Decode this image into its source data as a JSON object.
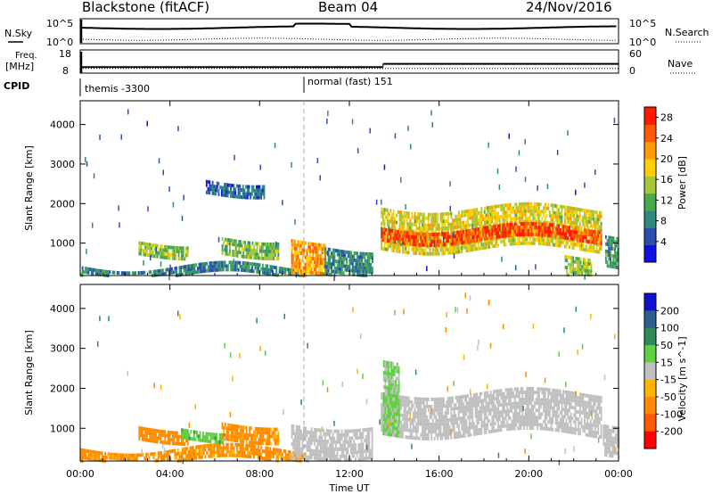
{
  "chart_data": {
    "type": "heatmap",
    "header": {
      "radar": "Blackstone (fitACF)",
      "beam": "Beam 04",
      "date": "24/Nov/2016"
    },
    "noise_panel": {
      "left_label": "N.Sky",
      "left_ticks": [
        "10^5",
        "10^0"
      ],
      "right_label": "N.Search",
      "right_ticks": [
        "10^5",
        "10^0"
      ]
    },
    "freq_panel": {
      "left_label_1": "Freq.",
      "left_label_2": "[MHz]",
      "left_ticks": [
        18,
        8
      ],
      "right_label": "Nave",
      "right_ticks": [
        60,
        0
      ],
      "freq_step_hours": [
        {
          "start": 0.0,
          "end": 13.5,
          "freq": 10.6
        },
        {
          "start": 13.5,
          "end": 24.0,
          "freq": 12.0
        }
      ]
    },
    "cpid": {
      "label": "CPID",
      "segments": [
        {
          "start": 0.0,
          "name": "themis -3300"
        },
        {
          "start": 10.0,
          "name": "normal (fast) 151"
        }
      ]
    },
    "x_axis": {
      "label": "Time UT",
      "tick_labels": [
        "00:00",
        "04:00",
        "08:00",
        "12:00",
        "16:00",
        "20:00",
        "00:00"
      ],
      "range_hours": [
        0,
        24
      ]
    },
    "y_axis": {
      "label": "Slant Range [km]",
      "ticks": [
        1000,
        2000,
        3000,
        4000
      ],
      "range_km": [
        180,
        4600
      ]
    },
    "power_panel": {
      "colorbar_label": "Power [dB]",
      "colorbar_ticks": [
        4,
        8,
        12,
        16,
        20,
        24,
        28
      ],
      "colorbar_range": [
        0,
        30
      ],
      "colorbar_colors": [
        "#1010e0",
        "#2a4fb0",
        "#2f8a7e",
        "#4ca84c",
        "#a6c63a",
        "#ffd000",
        "#ff9a00",
        "#ff5a00",
        "#ff1a00"
      ],
      "features": [
        {
          "t0": 0.0,
          "t1": 10.0,
          "r0": 200,
          "r1": 420,
          "db": 8
        },
        {
          "t0": 2.6,
          "t1": 4.8,
          "r0": 700,
          "r1": 1050,
          "db": 14
        },
        {
          "t0": 6.3,
          "t1": 8.8,
          "r0": 750,
          "r1": 1150,
          "db": 13
        },
        {
          "t0": 5.6,
          "t1": 8.2,
          "r0": 2300,
          "r1": 2600,
          "db": 6
        },
        {
          "t0": 9.4,
          "t1": 10.9,
          "r0": 200,
          "r1": 1100,
          "db": 22
        },
        {
          "t0": 10.9,
          "t1": 13.0,
          "r0": 200,
          "r1": 900,
          "db": 9
        },
        {
          "t0": 13.4,
          "t1": 23.2,
          "r0": 900,
          "r1": 1900,
          "db": 17
        },
        {
          "t0": 13.4,
          "t1": 23.2,
          "r0": 1050,
          "r1": 1400,
          "db": 26
        },
        {
          "t0": 21.6,
          "t1": 22.8,
          "r0": 200,
          "r1": 700,
          "db": 15
        },
        {
          "t0": 23.4,
          "t1": 24.0,
          "r0": 400,
          "r1": 1200,
          "db": 10
        }
      ]
    },
    "velocity_panel": {
      "colorbar_label": "Velocity [m s^-1]",
      "colorbar_ticks": [
        200,
        100,
        50,
        15,
        -15,
        -50,
        -100,
        -200
      ],
      "colorbar_colors": [
        "#1010d0",
        "#2a5f90",
        "#2f8a55",
        "#5fd040",
        "#c0c0c0",
        "#ffb400",
        "#ff8c00",
        "#ff5a00",
        "#ff0000"
      ],
      "features": [
        {
          "t0": 0.0,
          "t1": 10.0,
          "r0": 200,
          "r1": 500,
          "v": -60
        },
        {
          "t0": 2.6,
          "t1": 4.8,
          "r0": 700,
          "r1": 1050,
          "v": -70
        },
        {
          "t0": 4.5,
          "t1": 6.4,
          "r0": 800,
          "r1": 1000,
          "v": 40
        },
        {
          "t0": 6.3,
          "t1": 8.8,
          "r0": 750,
          "r1": 1150,
          "v": -60
        },
        {
          "t0": 9.4,
          "t1": 13.0,
          "r0": 200,
          "r1": 1100,
          "v": 0
        },
        {
          "t0": 13.4,
          "t1": 23.2,
          "r0": 900,
          "r1": 1900,
          "v": 0
        },
        {
          "t0": 13.5,
          "t1": 14.2,
          "r0": 900,
          "r1": 2700,
          "v": 20
        },
        {
          "t0": 23.3,
          "t1": 24.0,
          "r0": 300,
          "r1": 1100,
          "v": 0
        }
      ]
    }
  }
}
